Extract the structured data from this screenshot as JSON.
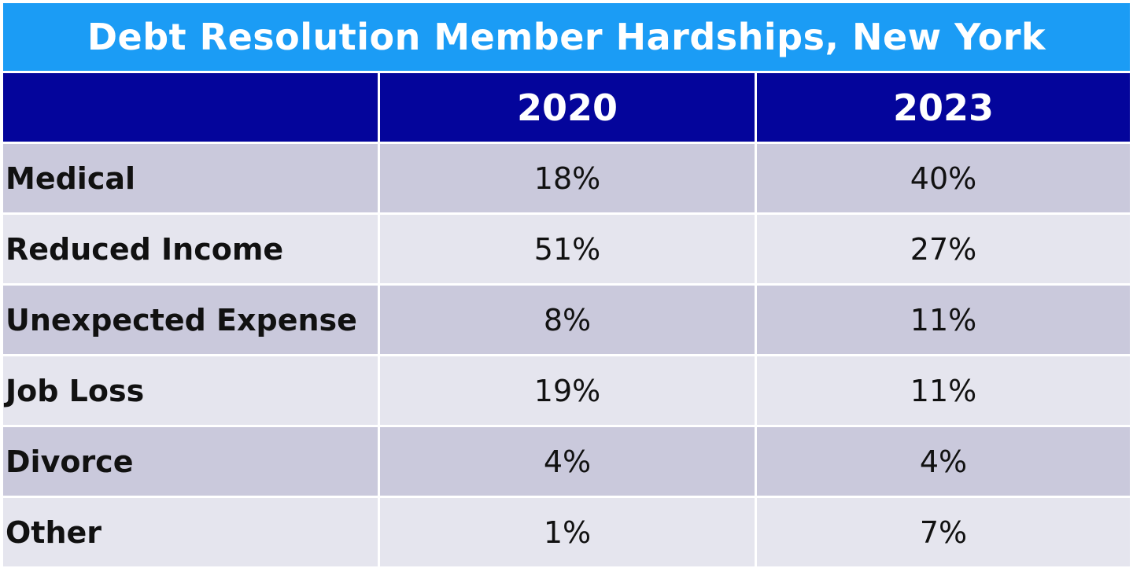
{
  "chart_data": {
    "type": "table",
    "title": "Debt Resolution Member Hardships, New York",
    "columns": [
      "",
      "2020",
      "2023"
    ],
    "rows": [
      {
        "category": "Medical",
        "values": [
          "18%",
          "40%"
        ]
      },
      {
        "category": "Reduced Income",
        "values": [
          "51%",
          "27%"
        ]
      },
      {
        "category": "Unexpected Expense",
        "values": [
          "8%",
          "11%"
        ]
      },
      {
        "category": "Job Loss",
        "values": [
          "19%",
          "11%"
        ]
      },
      {
        "category": "Divorce",
        "values": [
          "4%",
          "4%"
        ]
      },
      {
        "category": "Other",
        "values": [
          "1%",
          "7%"
        ]
      }
    ]
  },
  "colors": {
    "title_bg": "#1b9cf5",
    "header_bg": "#04059b",
    "row_dark": "#cac9dc",
    "row_light": "#e5e5ee"
  }
}
